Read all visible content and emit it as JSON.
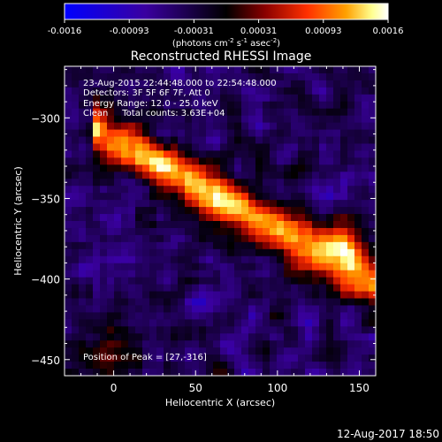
{
  "chart_data": {
    "type": "heatmap",
    "title": "Reconstructed RHESSI Image",
    "xlabel": "Heliocentric X (arcsec)",
    "ylabel": "Heliocentric Y (arcsec)",
    "xlim": [
      -30,
      160
    ],
    "ylim": [
      -460,
      -268
    ],
    "x_ticks": [
      0,
      50,
      100,
      150
    ],
    "y_ticks": [
      -300,
      -350,
      -400,
      -450
    ],
    "colorbar": {
      "min": -0.0016,
      "max": 0.0016,
      "ticks": [
        "-0.0016",
        "-0.00093",
        "-0.00031",
        "0.00031",
        "0.00093",
        "0.0016"
      ],
      "unit_label": "(photons cm",
      "unit_sup1": "-2",
      "unit_mid": " s",
      "unit_sup2": "-1",
      "unit_mid2": " asec",
      "unit_sup3": "-2",
      "unit_end": ")",
      "colors": [
        "#0000ff",
        "#3a00a0",
        "#000000",
        "#8a0000",
        "#ff3000",
        "#ffa000",
        "#ffff90",
        "#ffffff"
      ]
    },
    "info": [
      "23-Aug-2015 22:44:48.000 to 22:54:48.000",
      "Detectors: 3F 5F 6F 7F, Att 0",
      "Energy Range: 12.0 - 25.0 keV",
      "Clean     Total counts: 3.63E+04"
    ],
    "peak_label": "Position of Peak = [27,-316]",
    "peak": [
      27,
      -316
    ]
  },
  "footer": {
    "timestamp": "12-Aug-2017 18:50"
  }
}
